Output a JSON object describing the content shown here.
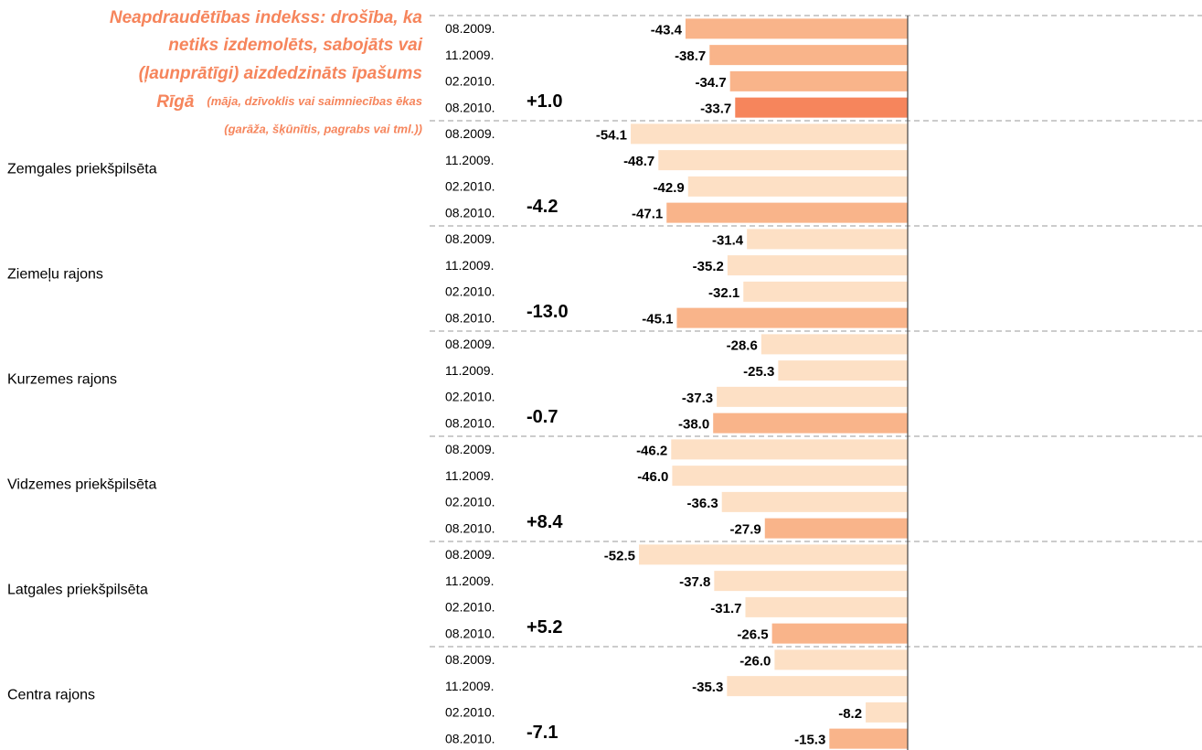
{
  "chart_data": {
    "type": "bar",
    "orientation": "horizontal",
    "title": [
      "Neapdraudētības indekss: drošība, ka",
      "netiks izdemolēts, sabojāts vai",
      "(ļaunprātīgi) aizdedzināts īpašums",
      "Rīgā"
    ],
    "subtitle": [
      "(māja, dzīvoklis vai saimniecības ēkas",
      "(garāža, šķūnītis, pagrabs vai tml.))"
    ],
    "categories": [
      null,
      "Zemgales priekšpilsēta",
      "Ziemeļu rajons",
      "Kurzemes rajons",
      "Vidzemes priekšpilsēta",
      "Latgales priekšpilsēta",
      "Centra rajons"
    ],
    "series": [
      {
        "name": "08.2009.",
        "color": "#fde0c5",
        "values": [
          -43.4,
          -54.1,
          -31.4,
          -28.6,
          -46.2,
          -52.5,
          -26.0
        ],
        "value_labels": [
          "-43.4",
          "-54.1",
          "-31.4",
          "-28.6",
          "-46.2",
          "-52.5",
          "-26.0"
        ]
      },
      {
        "name": "11.2009.",
        "color": "#fde0c5",
        "values": [
          -38.7,
          -48.7,
          -35.2,
          -25.3,
          -46.0,
          -37.8,
          -35.3
        ],
        "value_labels": [
          "-38.7",
          "-48.7",
          "-35.2",
          "-25.3",
          "-46.0",
          "-37.8",
          "-35.3"
        ]
      },
      {
        "name": "02.2010.",
        "color": "#fde0c5",
        "values": [
          -34.7,
          -42.9,
          -32.1,
          -37.3,
          -36.3,
          -31.7,
          -8.2
        ],
        "value_labels": [
          "-34.7",
          "-42.9",
          "-32.1",
          "-37.3",
          "-36.3",
          "-31.7",
          "-8.2"
        ]
      },
      {
        "name": "08.2010.",
        "color": "#f9b48a",
        "values": [
          -33.7,
          -47.1,
          -45.1,
          -38.0,
          -27.9,
          -26.5,
          -15.3
        ],
        "value_labels": [
          "-33.7",
          "-47.1",
          "-45.1",
          "-38.0",
          "-27.9",
          "-26.5",
          "-15.3"
        ]
      }
    ],
    "first_group_colors": [
      "#f9b48a",
      "#f9b48a",
      "#f9b48a",
      "#f6855c"
    ],
    "changes": [
      1.0,
      -4.2,
      -13.0,
      -0.7,
      8.4,
      5.2,
      -7.1
    ],
    "change_labels": [
      "+1.0",
      "-4.2",
      "-13.0",
      "-0.7",
      "+8.4",
      "+5.2",
      "-7.1"
    ],
    "positive_color": "#6f9a2b",
    "negative_color": "#d01933",
    "xlim": [
      -60,
      0
    ]
  }
}
